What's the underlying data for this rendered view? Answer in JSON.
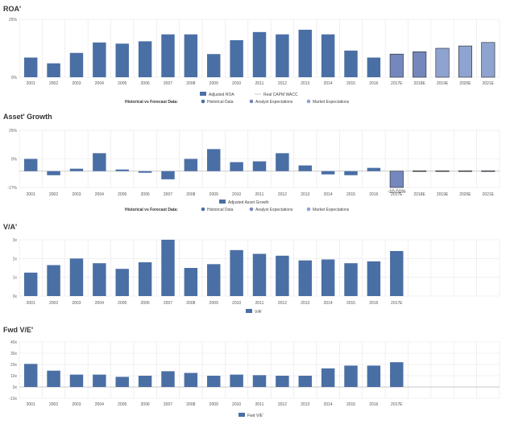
{
  "chart_data": [
    {
      "type": "bar",
      "title": "ROA'",
      "categories": [
        "2001",
        "2002",
        "2003",
        "2004",
        "2005",
        "2006",
        "2007",
        "2008",
        "2009",
        "2010",
        "2011",
        "2012",
        "2013",
        "2014",
        "2015",
        "2016",
        "2017E",
        "2018E",
        "2019E",
        "2020E",
        "2021E"
      ],
      "values": [
        8.5,
        6.0,
        10.5,
        15.0,
        14.5,
        15.5,
        18.5,
        18.5,
        10.0,
        16.0,
        19.5,
        18.5,
        20.5,
        18.5,
        11.5,
        8.5,
        10.0,
        11.0,
        12.5,
        13.5,
        15.0
      ],
      "forecast_from_index": 16,
      "y_ticks": [
        "25%",
        "0%"
      ],
      "ylim": [
        0,
        25
      ],
      "legend": [
        "Adjusted ROA",
        "Real CAPM WACC"
      ],
      "forecast_legend": {
        "label": "Historical vs Forecast Data:",
        "items": [
          "Historical Data",
          "Analyst Expectations",
          "Market Expectations"
        ]
      }
    },
    {
      "type": "bar",
      "title": "Asset' Growth",
      "categories": [
        "2001",
        "2002",
        "2003",
        "2004",
        "2005",
        "2006",
        "2007",
        "2008",
        "2009",
        "2010",
        "2011",
        "2012",
        "2013",
        "2014",
        "2015",
        "2016",
        "2017E",
        "2018E",
        "2019E",
        "2020E",
        "2021E"
      ],
      "values": [
        7.5,
        -2.5,
        1.5,
        11.0,
        1.0,
        -1.0,
        -5.0,
        7.5,
        13.5,
        5.5,
        6.0,
        11.0,
        3.5,
        -2.0,
        -2.5,
        2.0,
        -10.01,
        0.2,
        0.2,
        0.2,
        0.2
      ],
      "forecast_from_index": 16,
      "annotation": {
        "index": 16,
        "text": "-10.01%"
      },
      "y_ticks": [
        "25%",
        "0%",
        "-1?%"
      ],
      "ylim": [
        -10,
        25
      ],
      "legend": [
        "Adjusted Asset Growth"
      ],
      "forecast_legend": {
        "label": "Historical vs Forecast Data:",
        "items": [
          "Historical Data",
          "Analyst Expectations",
          "Market Expectations"
        ]
      }
    },
    {
      "type": "bar",
      "title": "V/A'",
      "categories": [
        "2001",
        "2002",
        "2003",
        "2004",
        "2005",
        "2006",
        "2007",
        "2008",
        "2009",
        "2010",
        "2011",
        "2012",
        "2013",
        "2014",
        "2015",
        "2016",
        "2017E"
      ],
      "values": [
        1.25,
        1.65,
        2.0,
        1.75,
        1.45,
        1.8,
        3.0,
        1.5,
        1.7,
        2.45,
        2.25,
        2.15,
        1.9,
        1.95,
        1.75,
        1.85,
        2.4
      ],
      "y_ticks": [
        "3x",
        "2x",
        "1x",
        "0x"
      ],
      "ylim": [
        0,
        3
      ],
      "legend": [
        "V/A'"
      ]
    },
    {
      "type": "bar",
      "title": "Fwd V/E'",
      "categories": [
        "2001",
        "2002",
        "2003",
        "2004",
        "2005",
        "2006",
        "2007",
        "2008",
        "2009",
        "2010",
        "2011",
        "2012",
        "2013",
        "2014",
        "2015",
        "2016",
        "2017E"
      ],
      "values": [
        20.5,
        14.5,
        11.0,
        11.0,
        9.0,
        10.0,
        14.0,
        12.5,
        10.0,
        11.0,
        10.5,
        10.0,
        10.0,
        16.5,
        19.0,
        19.0,
        22.0
      ],
      "y_ticks": [
        "40x",
        "30x",
        "20x",
        "10x",
        "0x",
        "-10x"
      ],
      "ylim": [
        -10,
        40
      ],
      "legend": [
        "Fwd V/E'"
      ]
    }
  ],
  "colors": {
    "historical": "#4a6fa5",
    "analyst": "#7488bd",
    "market": "#8ea3cf",
    "wacc": "#c9c9c9",
    "grid": "#e6e6e6"
  }
}
